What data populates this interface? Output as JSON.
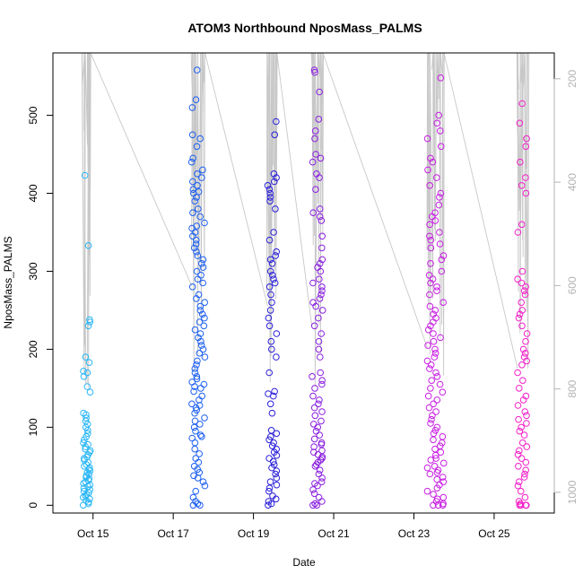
{
  "chart_data": {
    "type": "scatter",
    "title": "ATOM3 Northbound NposMass_PALMS",
    "xlabel": "Date",
    "ylabel": "NposMass_PALMS",
    "x_axis_type": "date",
    "xlim": [
      "2017-10-14T00:00",
      "2017-10-26T12:00"
    ],
    "x_ticks": [
      {
        "date": "2017-10-15",
        "label": "Oct 15"
      },
      {
        "date": "2017-10-17",
        "label": "Oct 17"
      },
      {
        "date": "2017-10-19",
        "label": "Oct 19"
      },
      {
        "date": "2017-10-21",
        "label": "Oct 21"
      },
      {
        "date": "2017-10-23",
        "label": "Oct 23"
      },
      {
        "date": "2017-10-25",
        "label": "Oct 25"
      }
    ],
    "ylim": [
      -10,
      580
    ],
    "y_ticks": [
      0,
      100,
      200,
      300,
      400,
      500
    ],
    "y2_label": "",
    "y2_reversed": true,
    "y2lim": [
      1040,
      150
    ],
    "y2_ticks": [
      200,
      400,
      600,
      800,
      1000
    ],
    "point_marker": "open-circle",
    "color_gradient": [
      "#29b6f6",
      "#1c5ff0",
      "#2a1fd8",
      "#8a1fe0",
      "#c81fe3",
      "#f31fc8"
    ],
    "secondary_line_color": "#c8c8c8",
    "flights": [
      {
        "date": "2017-10-14",
        "start": "2017-10-14T18:00",
        "end": "2017-10-14T22:30",
        "color": "#29b6f6",
        "values": [
          0,
          2,
          4,
          6,
          8,
          10,
          12,
          14,
          16,
          18,
          20,
          22,
          24,
          26,
          28,
          30,
          32,
          34,
          36,
          38,
          40,
          42,
          44,
          46,
          48,
          50,
          52,
          55,
          58,
          60,
          62,
          65,
          68,
          70,
          72,
          75,
          78,
          80,
          84,
          88,
          92,
          96,
          100,
          104,
          108,
          112,
          116,
          118,
          145,
          152,
          165,
          170,
          172,
          183,
          190,
          230,
          235,
          238,
          333,
          423
        ]
      },
      {
        "date": "2017-10-17",
        "start": "2017-10-17T11:00",
        "end": "2017-10-17T19:00",
        "color": "#1c5ff0",
        "values": [
          0,
          0,
          2,
          5,
          10,
          18,
          25,
          30,
          35,
          38,
          42,
          46,
          50,
          55,
          60,
          66,
          72,
          80,
          86,
          88,
          90,
          95,
          100,
          104,
          108,
          112,
          118,
          122,
          125,
          128,
          130,
          135,
          140,
          146,
          150,
          152,
          155,
          158,
          162,
          165,
          170,
          175,
          180,
          185,
          190,
          195,
          200,
          205,
          210,
          215,
          220,
          225,
          230,
          235,
          240,
          245,
          250,
          255,
          260,
          265,
          270,
          280,
          285,
          290,
          295,
          300,
          305,
          310,
          315,
          320,
          325,
          330,
          335,
          340,
          345,
          350,
          355,
          358,
          362,
          370,
          375,
          380,
          390,
          395,
          400,
          402,
          405,
          410,
          415,
          420,
          425,
          430,
          440,
          445,
          460,
          470,
          475,
          510,
          520,
          558
        ]
      },
      {
        "date": "2017-10-19",
        "start": "2017-10-19T08:30",
        "end": "2017-10-19T14:00",
        "color": "#2a1fd8",
        "values": [
          0,
          2,
          5,
          8,
          12,
          18,
          22,
          26,
          30,
          35,
          40,
          44,
          48,
          52,
          56,
          60,
          64,
          68,
          72,
          76,
          80,
          84,
          88,
          92,
          96,
          118,
          130,
          140,
          143,
          146,
          170,
          190,
          200,
          210,
          220,
          230,
          240,
          250,
          260,
          270,
          280,
          285,
          290,
          295,
          300,
          310,
          315,
          320,
          325,
          340,
          350,
          380,
          390,
          395,
          400,
          405,
          410,
          415,
          420,
          425,
          475,
          492
        ]
      },
      {
        "date": "2017-10-20",
        "start": "2017-10-20T11:00",
        "end": "2017-10-20T17:30",
        "color": "#8a1fe0",
        "values": [
          0,
          0,
          2,
          5,
          10,
          15,
          20,
          25,
          28,
          30,
          35,
          40,
          45,
          50,
          52,
          55,
          58,
          60,
          62,
          65,
          68,
          70,
          75,
          78,
          80,
          85,
          90,
          95,
          100,
          104,
          108,
          115,
          120,
          125,
          130,
          135,
          140,
          150,
          155,
          160,
          165,
          170,
          190,
          200,
          210,
          220,
          230,
          240,
          250,
          255,
          260,
          265,
          270,
          275,
          280,
          285,
          290,
          300,
          305,
          310,
          315,
          330,
          345,
          365,
          370,
          375,
          380,
          405,
          420,
          425,
          440,
          445,
          450,
          470,
          480,
          495,
          530,
          555,
          558
        ]
      },
      {
        "date": "2017-10-23",
        "start": "2017-10-23T08:00",
        "end": "2017-10-23T18:00",
        "color": "#c81fe3",
        "values": [
          0,
          0,
          0,
          2,
          5,
          8,
          10,
          14,
          18,
          22,
          26,
          30,
          33,
          36,
          40,
          42,
          45,
          48,
          50,
          54,
          58,
          60,
          64,
          68,
          72,
          76,
          80,
          84,
          88,
          92,
          96,
          100,
          105,
          110,
          115,
          120,
          125,
          130,
          135,
          140,
          145,
          150,
          155,
          160,
          165,
          170,
          175,
          180,
          185,
          190,
          195,
          200,
          205,
          210,
          215,
          220,
          225,
          230,
          235,
          240,
          245,
          250,
          255,
          260,
          270,
          275,
          280,
          285,
          290,
          295,
          300,
          310,
          315,
          320,
          330,
          335,
          340,
          345,
          350,
          360,
          365,
          370,
          375,
          385,
          395,
          400,
          410,
          420,
          430,
          440,
          445,
          460,
          470,
          480,
          490,
          500,
          548
        ]
      },
      {
        "date": "2017-10-25",
        "start": "2017-10-25T14:00",
        "end": "2017-10-25T20:00",
        "color": "#f31fc8",
        "values": [
          0,
          0,
          0,
          0,
          2,
          5,
          10,
          18,
          25,
          30,
          36,
          40,
          45,
          50,
          55,
          60,
          65,
          70,
          75,
          80,
          90,
          95,
          100,
          105,
          110,
          115,
          120,
          128,
          135,
          140,
          150,
          160,
          170,
          180,
          185,
          190,
          195,
          200,
          210,
          220,
          230,
          240,
          245,
          250,
          260,
          270,
          275,
          280,
          285,
          290,
          300,
          350,
          360,
          400,
          410,
          420,
          440,
          460,
          470,
          490,
          515
        ]
      }
    ]
  }
}
